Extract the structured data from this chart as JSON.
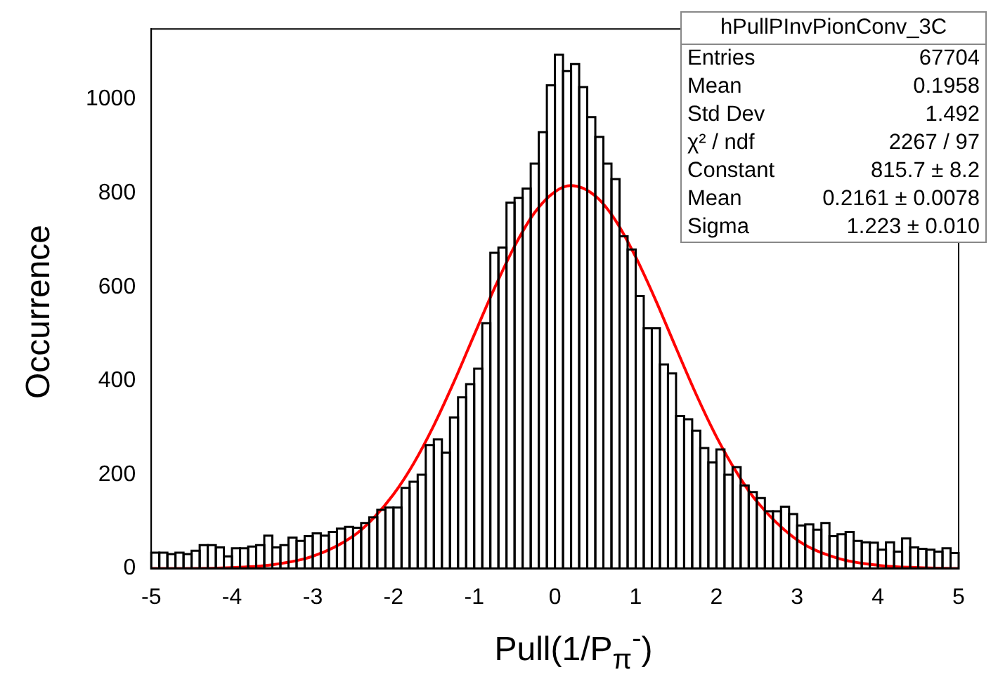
{
  "chart_data": {
    "type": "histogram",
    "xlabel": "Pull(1/P$_{π}$$^{-}$)",
    "ylabel": "Occurrence",
    "annotations": [
      "hPullPInvPionConv_3C",
      "Entries",
      "67704",
      "Mean",
      "0.1958",
      "Std Dev",
      "1.492",
      "χ² / ndf",
      "2267 / 97",
      "Constant",
      "815.7 ± 8.2",
      "Mean",
      "0.2161 ± 0.0078",
      "Sigma",
      "1.223 ± 0.010"
    ],
    "series": [
      {
        "color": "#000000",
        "bins": [
          -5,
          -4.9,
          -4.8,
          -4.7,
          -4.6,
          -4.5,
          -4.4,
          -4.3,
          -4.2,
          -4.1,
          -4,
          -3.9,
          -3.8,
          -3.7,
          -3.6,
          -3.5,
          -3.4,
          -3.3,
          -3.2,
          -3.1,
          -3,
          -2.9,
          -2.8,
          -2.7,
          -2.6,
          -2.5,
          -2.4,
          -2.3,
          -2.2,
          -2.1,
          -2,
          -1.9,
          -1.8,
          -1.7,
          -1.6,
          -1.5,
          -1.4,
          -1.3,
          -1.2,
          -1.1,
          -1,
          -0.9,
          -0.8,
          -0.7,
          -0.6,
          -0.5,
          -0.4,
          -0.3,
          -0.2,
          -0.1,
          0,
          0.1,
          0.2,
          0.3,
          0.4,
          0.5,
          0.6,
          0.7,
          0.8,
          0.9,
          1,
          1.1,
          1.2,
          1.3,
          1.4,
          1.5,
          1.6,
          1.7,
          1.8,
          1.9,
          2,
          2.1,
          2.2,
          2.3,
          2.4,
          2.5,
          2.6,
          2.7,
          2.8,
          2.9,
          3,
          3.1,
          3.2,
          3.3,
          3.4,
          3.5,
          3.6,
          3.7,
          3.8,
          3.9,
          4,
          4.1,
          4.2,
          4.3,
          4.4,
          4.5,
          4.6,
          4.7,
          4.8,
          4.9,
          5
        ],
        "values": [
          34,
          34,
          31,
          34,
          31,
          38,
          50,
          50,
          45,
          26,
          43,
          43,
          47,
          50,
          70,
          45,
          50,
          66,
          59,
          69,
          75,
          70,
          78,
          85,
          89,
          87,
          97,
          109,
          125,
          130,
          130,
          172,
          185,
          200,
          263,
          275,
          247,
          322,
          365,
          393,
          426,
          523,
          673,
          684,
          780,
          790,
          810,
          863,
          930,
          1030,
          1095,
          1060,
          1075,
          1026,
          962,
          920,
          863,
          830,
          708,
          680,
          581,
          512,
          512,
          435,
          416,
          325,
          318,
          294,
          257,
          226,
          254,
          200,
          216,
          177,
          163,
          150,
          122,
          122,
          132,
          116,
          92,
          94,
          83,
          97,
          69,
          73,
          78,
          59,
          56,
          55,
          40,
          56,
          36,
          64,
          45,
          42,
          40,
          36,
          43,
          33
        ]
      },
      {
        "type": "line",
        "color": "#ff0000",
        "x": [
          -5,
          -4.5,
          -4,
          -3.5,
          -3,
          -2.5,
          -2.25,
          -2,
          -1.75,
          -1.5,
          -1.25,
          -1,
          -0.75,
          -0.5,
          -0.25,
          0,
          0.2,
          0.5,
          0.75,
          1,
          1.25,
          1.5,
          1.75,
          2,
          2.25,
          2.5,
          3,
          3.5,
          4,
          4.5,
          5
        ],
        "values": [
          0,
          0,
          2,
          8,
          26,
          69,
          107,
          158,
          224,
          305,
          398,
          498,
          597,
          687,
          759,
          803,
          816,
          794,
          742,
          664,
          571,
          470,
          371,
          281,
          205,
          143,
          61,
          22,
          7,
          2,
          0
        ]
      }
    ],
    "marker": "none",
    "xlim": [
      -5,
      5
    ],
    "ylim": [
      0,
      1150
    ],
    "xticks": [
      -5,
      -4,
      -3,
      -2,
      -1,
      0,
      1,
      2,
      3,
      4,
      5
    ],
    "yticks": [
      0,
      200,
      400,
      600,
      800,
      1000
    ]
  }
}
